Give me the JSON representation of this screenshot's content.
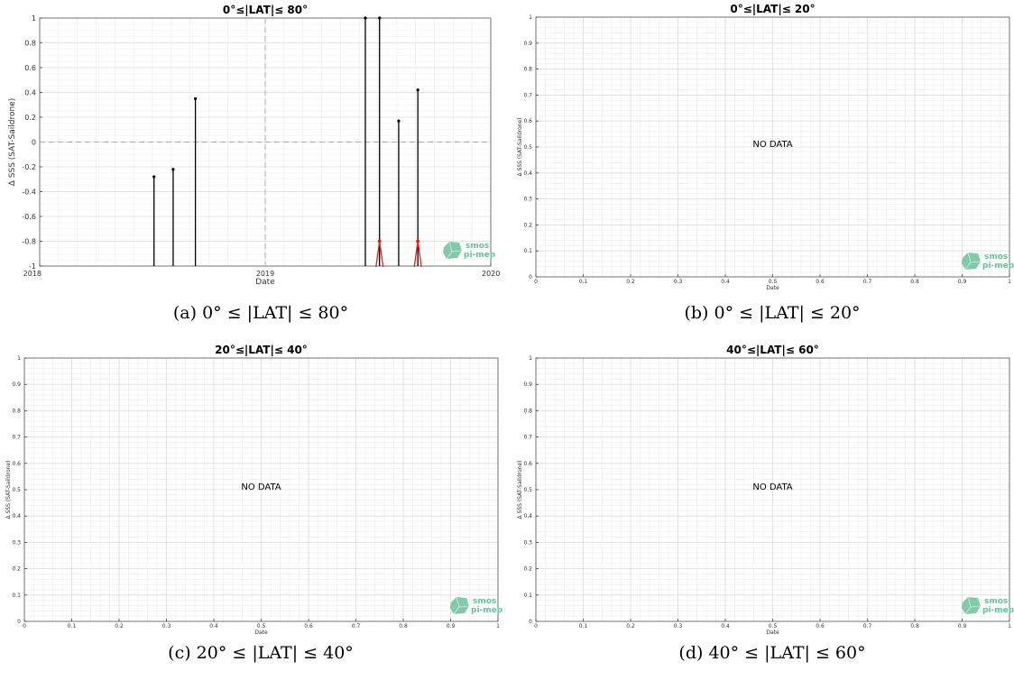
{
  "logo": {
    "line1": "smos",
    "line2": "pi-mep",
    "color": "#6fbf9a"
  },
  "chart_data": [
    {
      "id": "a",
      "type": "bar",
      "title": "0°≤|LAT|≤ 80°",
      "caption": "(a) 0° ≤ |LAT| ≤ 80°",
      "xlabel": "Date",
      "ylabel": "Δ SSS (SAT-Saildrone)",
      "x_axis": "date",
      "xlim": [
        "2018-01-01",
        "2020-01-01"
      ],
      "xticks": [
        "2018",
        "2019",
        "2020"
      ],
      "ylim": [
        -1,
        1
      ],
      "yticks": [
        -1,
        -0.8,
        -0.6,
        -0.4,
        -0.2,
        0,
        0.2,
        0.4,
        0.6,
        0.8,
        1
      ],
      "grid": true,
      "reference_lines": {
        "y": 0,
        "x": "2019-01-01"
      },
      "series": [
        {
          "style": "stem",
          "color": "#000000",
          "points": [
            {
              "x": "2018-07-05",
              "y": -0.28
            },
            {
              "x": "2018-08-05",
              "y": -0.22
            },
            {
              "x": "2018-09-10",
              "y": 0.35
            },
            {
              "x": "2019-06-12",
              "y": 1.0
            },
            {
              "x": "2019-07-05",
              "y": 1.0
            },
            {
              "x": "2019-08-05",
              "y": 0.17
            },
            {
              "x": "2019-09-05",
              "y": 0.42
            }
          ]
        },
        {
          "style": "spike",
          "color": "#d62728",
          "points": [
            {
              "x": "2019-07-05",
              "y": -0.8
            },
            {
              "x": "2019-09-05",
              "y": -0.8
            }
          ]
        }
      ]
    },
    {
      "id": "b",
      "type": "line",
      "title": "0°≤|LAT|≤ 20°",
      "caption": "(b) 0° ≤ |LAT| ≤ 20°",
      "xlabel": "Date",
      "ylabel": "Δ SSS (SAT-Saildrone)",
      "xlim": [
        0,
        1
      ],
      "ylim": [
        0,
        1
      ],
      "xticks": [
        0,
        0.1,
        0.2,
        0.3,
        0.4,
        0.5,
        0.6,
        0.7,
        0.8,
        0.9,
        1
      ],
      "yticks": [
        0,
        0.1,
        0.2,
        0.3,
        0.4,
        0.5,
        0.6,
        0.7,
        0.8,
        0.9,
        1
      ],
      "grid": true,
      "annotation": "NO DATA",
      "series": []
    },
    {
      "id": "c",
      "type": "line",
      "title": "20°≤|LAT|≤ 40°",
      "caption": "(c) 20° ≤ |LAT| ≤ 40°",
      "xlabel": "Date",
      "ylabel": "Δ SSS (SAT-Saildrone)",
      "xlim": [
        0,
        1
      ],
      "ylim": [
        0,
        1
      ],
      "xticks": [
        0,
        0.1,
        0.2,
        0.3,
        0.4,
        0.5,
        0.6,
        0.7,
        0.8,
        0.9,
        1
      ],
      "yticks": [
        0,
        0.1,
        0.2,
        0.3,
        0.4,
        0.5,
        0.6,
        0.7,
        0.8,
        0.9,
        1
      ],
      "grid": true,
      "annotation": "NO DATA",
      "series": []
    },
    {
      "id": "d",
      "type": "line",
      "title": "40°≤|LAT|≤ 60°",
      "caption": "(d) 40° ≤ |LAT| ≤ 60°",
      "xlabel": "Date",
      "ylabel": "Δ SSS (SAT-Saildrone)",
      "xlim": [
        0,
        1
      ],
      "ylim": [
        0,
        1
      ],
      "xticks": [
        0,
        0.1,
        0.2,
        0.3,
        0.4,
        0.5,
        0.6,
        0.7,
        0.8,
        0.9,
        1
      ],
      "yticks": [
        0,
        0.1,
        0.2,
        0.3,
        0.4,
        0.5,
        0.6,
        0.7,
        0.8,
        0.9,
        1
      ],
      "grid": true,
      "annotation": "NO DATA",
      "series": []
    }
  ]
}
